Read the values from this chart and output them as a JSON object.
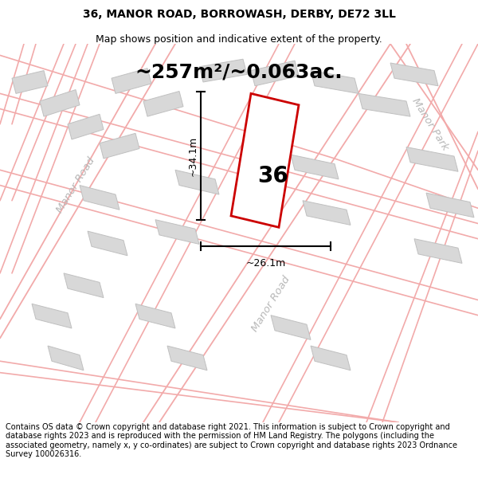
{
  "title": "36, MANOR ROAD, BORROWASH, DERBY, DE72 3LL",
  "subtitle": "Map shows position and indicative extent of the property.",
  "footer": "Contains OS data © Crown copyright and database right 2021. This information is subject to Crown copyright and database rights 2023 and is reproduced with the permission of HM Land Registry. The polygons (including the associated geometry, namely x, y co-ordinates) are subject to Crown copyright and database rights 2023 Ordnance Survey 100026316.",
  "area_text": "~257m²/~0.063ac.",
  "dim_vertical": "~34.1m",
  "dim_horizontal": "~26.1m",
  "label_36": "36",
  "road_label_manor_left": "Manor Road",
  "road_label_manor_bottom": "Manor Road",
  "road_label_manor_park": "Manor Park",
  "bg_color": "#ffffff",
  "map_bg": "#f7f7f7",
  "building_color": "#d8d8d8",
  "building_edge": "#c0c0c0",
  "road_line_color": "#f2aaaa",
  "plot_color": "#cc0000",
  "road_label_color": "#b8b8b8",
  "title_fontsize": 10,
  "subtitle_fontsize": 9,
  "footer_fontsize": 7.0,
  "area_fontsize": 18,
  "label_fontsize": 20,
  "road_fontsize": 9.5,
  "dim_fontsize": 9
}
